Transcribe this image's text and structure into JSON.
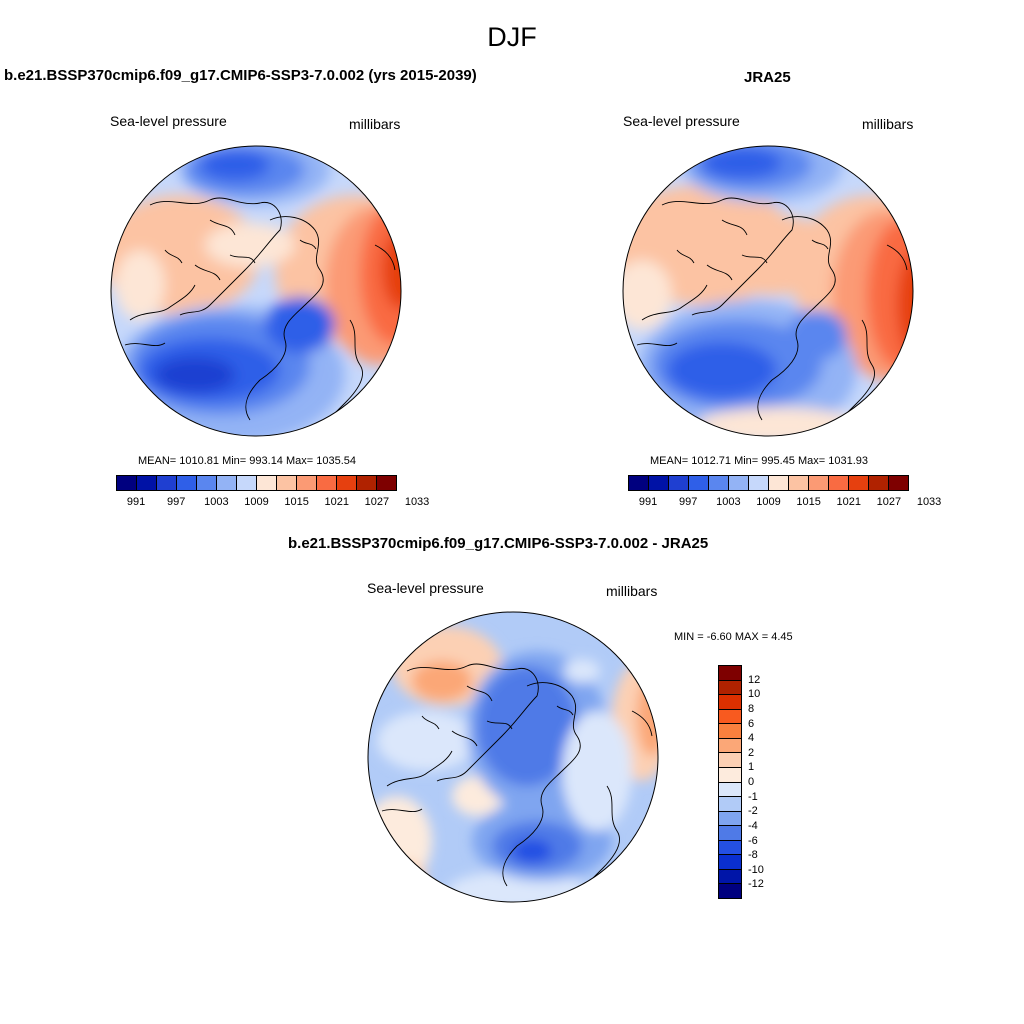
{
  "page_title": "DJF",
  "palettes": {
    "slp": [
      "#00007f",
      "#0012a6",
      "#1f3fd1",
      "#2f5fe8",
      "#5a86ef",
      "#93b3f5",
      "#c6d8fb",
      "#fde6d6",
      "#fcc3a3",
      "#fb9a74",
      "#f96b42",
      "#e6400f",
      "#b02200",
      "#7e0000"
    ],
    "diff": [
      "#7e0000",
      "#b02200",
      "#dd3000",
      "#f85a1f",
      "#f9803e",
      "#fba777",
      "#fcd0b4",
      "#fdebdd",
      "#dbe7fb",
      "#b1cbf7",
      "#7fa5f0",
      "#4f7ae7",
      "#2450e3",
      "#0a2fd0",
      "#0015a8",
      "#00007f"
    ]
  },
  "panel_model": {
    "title": "b.e21.BSSP370cmip6.f09_g17.CMIP6-SSP3-7.0.002 (yrs 2015-2039)",
    "left_label": "Sea-level pressure",
    "right_label": "millibars",
    "stats": "MEAN= 1010.81  Min= 993.14  Max= 1035.54",
    "mean": 1010.81,
    "min": 993.14,
    "max": 1035.54
  },
  "panel_obs": {
    "title": "JRA25",
    "left_label": "Sea-level pressure",
    "right_label": "millibars",
    "stats": "MEAN= 1012.71  Min= 995.45  Max= 1031.93",
    "mean": 1012.71,
    "min": 995.45,
    "max": 1031.93
  },
  "panel_diff": {
    "title": "b.e21.BSSP370cmip6.f09_g17.CMIP6-SSP3-7.0.002 - JRA25",
    "left_label": "Sea-level pressure",
    "right_label": "millibars",
    "stats": "MIN =  -6.60 MAX =   4.45",
    "min": -6.6,
    "max": 4.45
  },
  "colorbar_slp": {
    "labels": [
      "991",
      "997",
      "1003",
      "1009",
      "1015",
      "1021",
      "1027",
      "1033"
    ]
  },
  "colorbar_diff": {
    "labels": [
      "12",
      "10",
      "8",
      "6",
      "4",
      "2",
      "1",
      "0",
      "-1",
      "-2",
      "-4",
      "-6",
      "-8",
      "-10",
      "-12"
    ]
  }
}
